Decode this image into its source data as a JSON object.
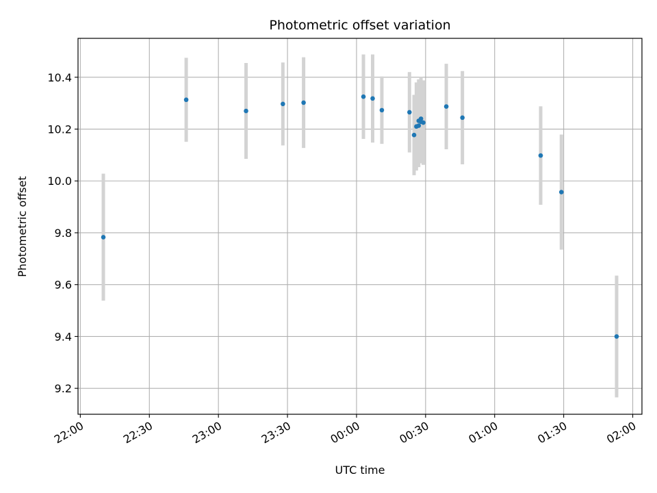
{
  "chart_data": {
    "type": "scatter",
    "title": "Photometric offset variation",
    "xlabel": "UTC time",
    "ylabel": "Photometric offset",
    "grid": true,
    "xlim": [
      "21:59",
      "02:04"
    ],
    "ylim": [
      9.1,
      10.55
    ],
    "x_ticks": [
      "22:00",
      "22:30",
      "23:00",
      "23:30",
      "00:00",
      "00:30",
      "01:00",
      "01:30",
      "02:00"
    ],
    "y_ticks": [
      "9.2",
      "9.4",
      "9.6",
      "9.8",
      "10.0",
      "10.2",
      "10.4"
    ],
    "colors": {
      "point": "#1f77b4",
      "errorbar": "#d3d3d3",
      "grid": "#b0b0b0"
    },
    "points": [
      {
        "time": "22:10",
        "y": 9.783,
        "err": 0.245
      },
      {
        "time": "22:46",
        "y": 10.313,
        "err": 0.162
      },
      {
        "time": "23:12",
        "y": 10.27,
        "err": 0.185
      },
      {
        "time": "23:28",
        "y": 10.297,
        "err": 0.16
      },
      {
        "time": "23:37",
        "y": 10.302,
        "err": 0.175
      },
      {
        "time": "00:03",
        "y": 10.325,
        "err": 0.163
      },
      {
        "time": "00:07",
        "y": 10.318,
        "err": 0.17
      },
      {
        "time": "00:11",
        "y": 10.273,
        "err": 0.13
      },
      {
        "time": "00:23",
        "y": 10.265,
        "err": 0.155
      },
      {
        "time": "00:25",
        "y": 10.177,
        "err": 0.155
      },
      {
        "time": "00:26",
        "y": 10.21,
        "err": 0.17
      },
      {
        "time": "00:27",
        "y": 10.213,
        "err": 0.16
      },
      {
        "time": "00:27",
        "y": 10.232,
        "err": 0.16
      },
      {
        "time": "00:28",
        "y": 10.24,
        "err": 0.16
      },
      {
        "time": "00:28",
        "y": 10.228,
        "err": 0.16
      },
      {
        "time": "00:29",
        "y": 10.225,
        "err": 0.163
      },
      {
        "time": "00:39",
        "y": 10.287,
        "err": 0.165
      },
      {
        "time": "00:46",
        "y": 10.244,
        "err": 0.18
      },
      {
        "time": "01:20",
        "y": 10.098,
        "err": 0.19
      },
      {
        "time": "01:29",
        "y": 9.957,
        "err": 0.222
      },
      {
        "time": "01:53",
        "y": 9.4,
        "err": 0.235
      }
    ]
  }
}
